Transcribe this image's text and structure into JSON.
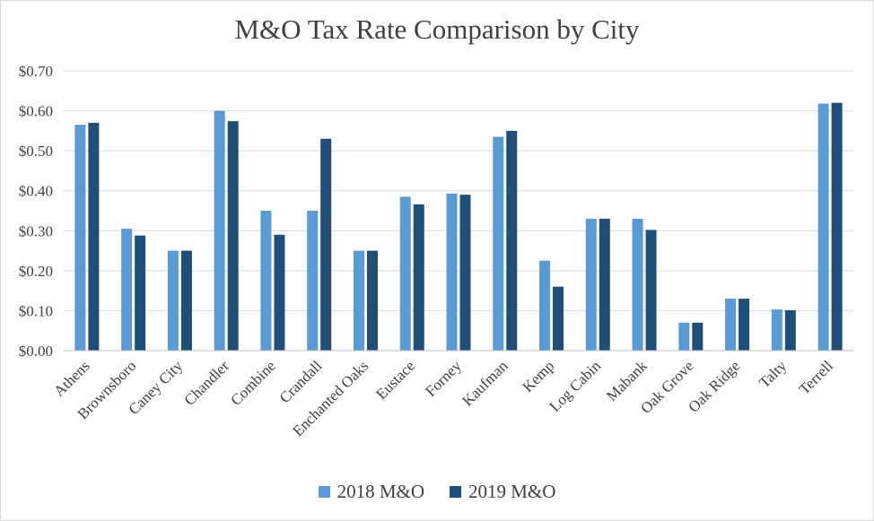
{
  "chart_data": {
    "type": "bar",
    "title": "M&O Tax Rate Comparison by City",
    "xlabel": "",
    "ylabel": "",
    "ylim": [
      0,
      0.7
    ],
    "yticks": [
      "$0.00",
      "$0.10",
      "$0.20",
      "$0.30",
      "$0.40",
      "$0.50",
      "$0.60",
      "$0.70"
    ],
    "grid": true,
    "legend_position": "bottom",
    "categories": [
      "Athens",
      "Brownsboro",
      "Caney City",
      "Chandler",
      "Combine",
      "Crandall",
      "Enchanted Oaks",
      "Eustace",
      "Forney",
      "Kaufman",
      "Kemp",
      "Log Cabin",
      "Mabank",
      "Oak Grove",
      "Oak Ridge",
      "Talty",
      "Terrell"
    ],
    "series": [
      {
        "name": "2018 M&O",
        "color": "#5b9bd5",
        "values": [
          0.565,
          0.305,
          0.25,
          0.6,
          0.35,
          0.35,
          0.25,
          0.385,
          0.393,
          0.535,
          0.225,
          0.33,
          0.33,
          0.07,
          0.13,
          0.103,
          0.618
        ]
      },
      {
        "name": "2019 M&O",
        "color": "#1f4e79",
        "values": [
          0.57,
          0.288,
          0.25,
          0.574,
          0.29,
          0.53,
          0.25,
          0.366,
          0.39,
          0.55,
          0.16,
          0.33,
          0.302,
          0.07,
          0.13,
          0.101,
          0.62
        ]
      }
    ]
  }
}
